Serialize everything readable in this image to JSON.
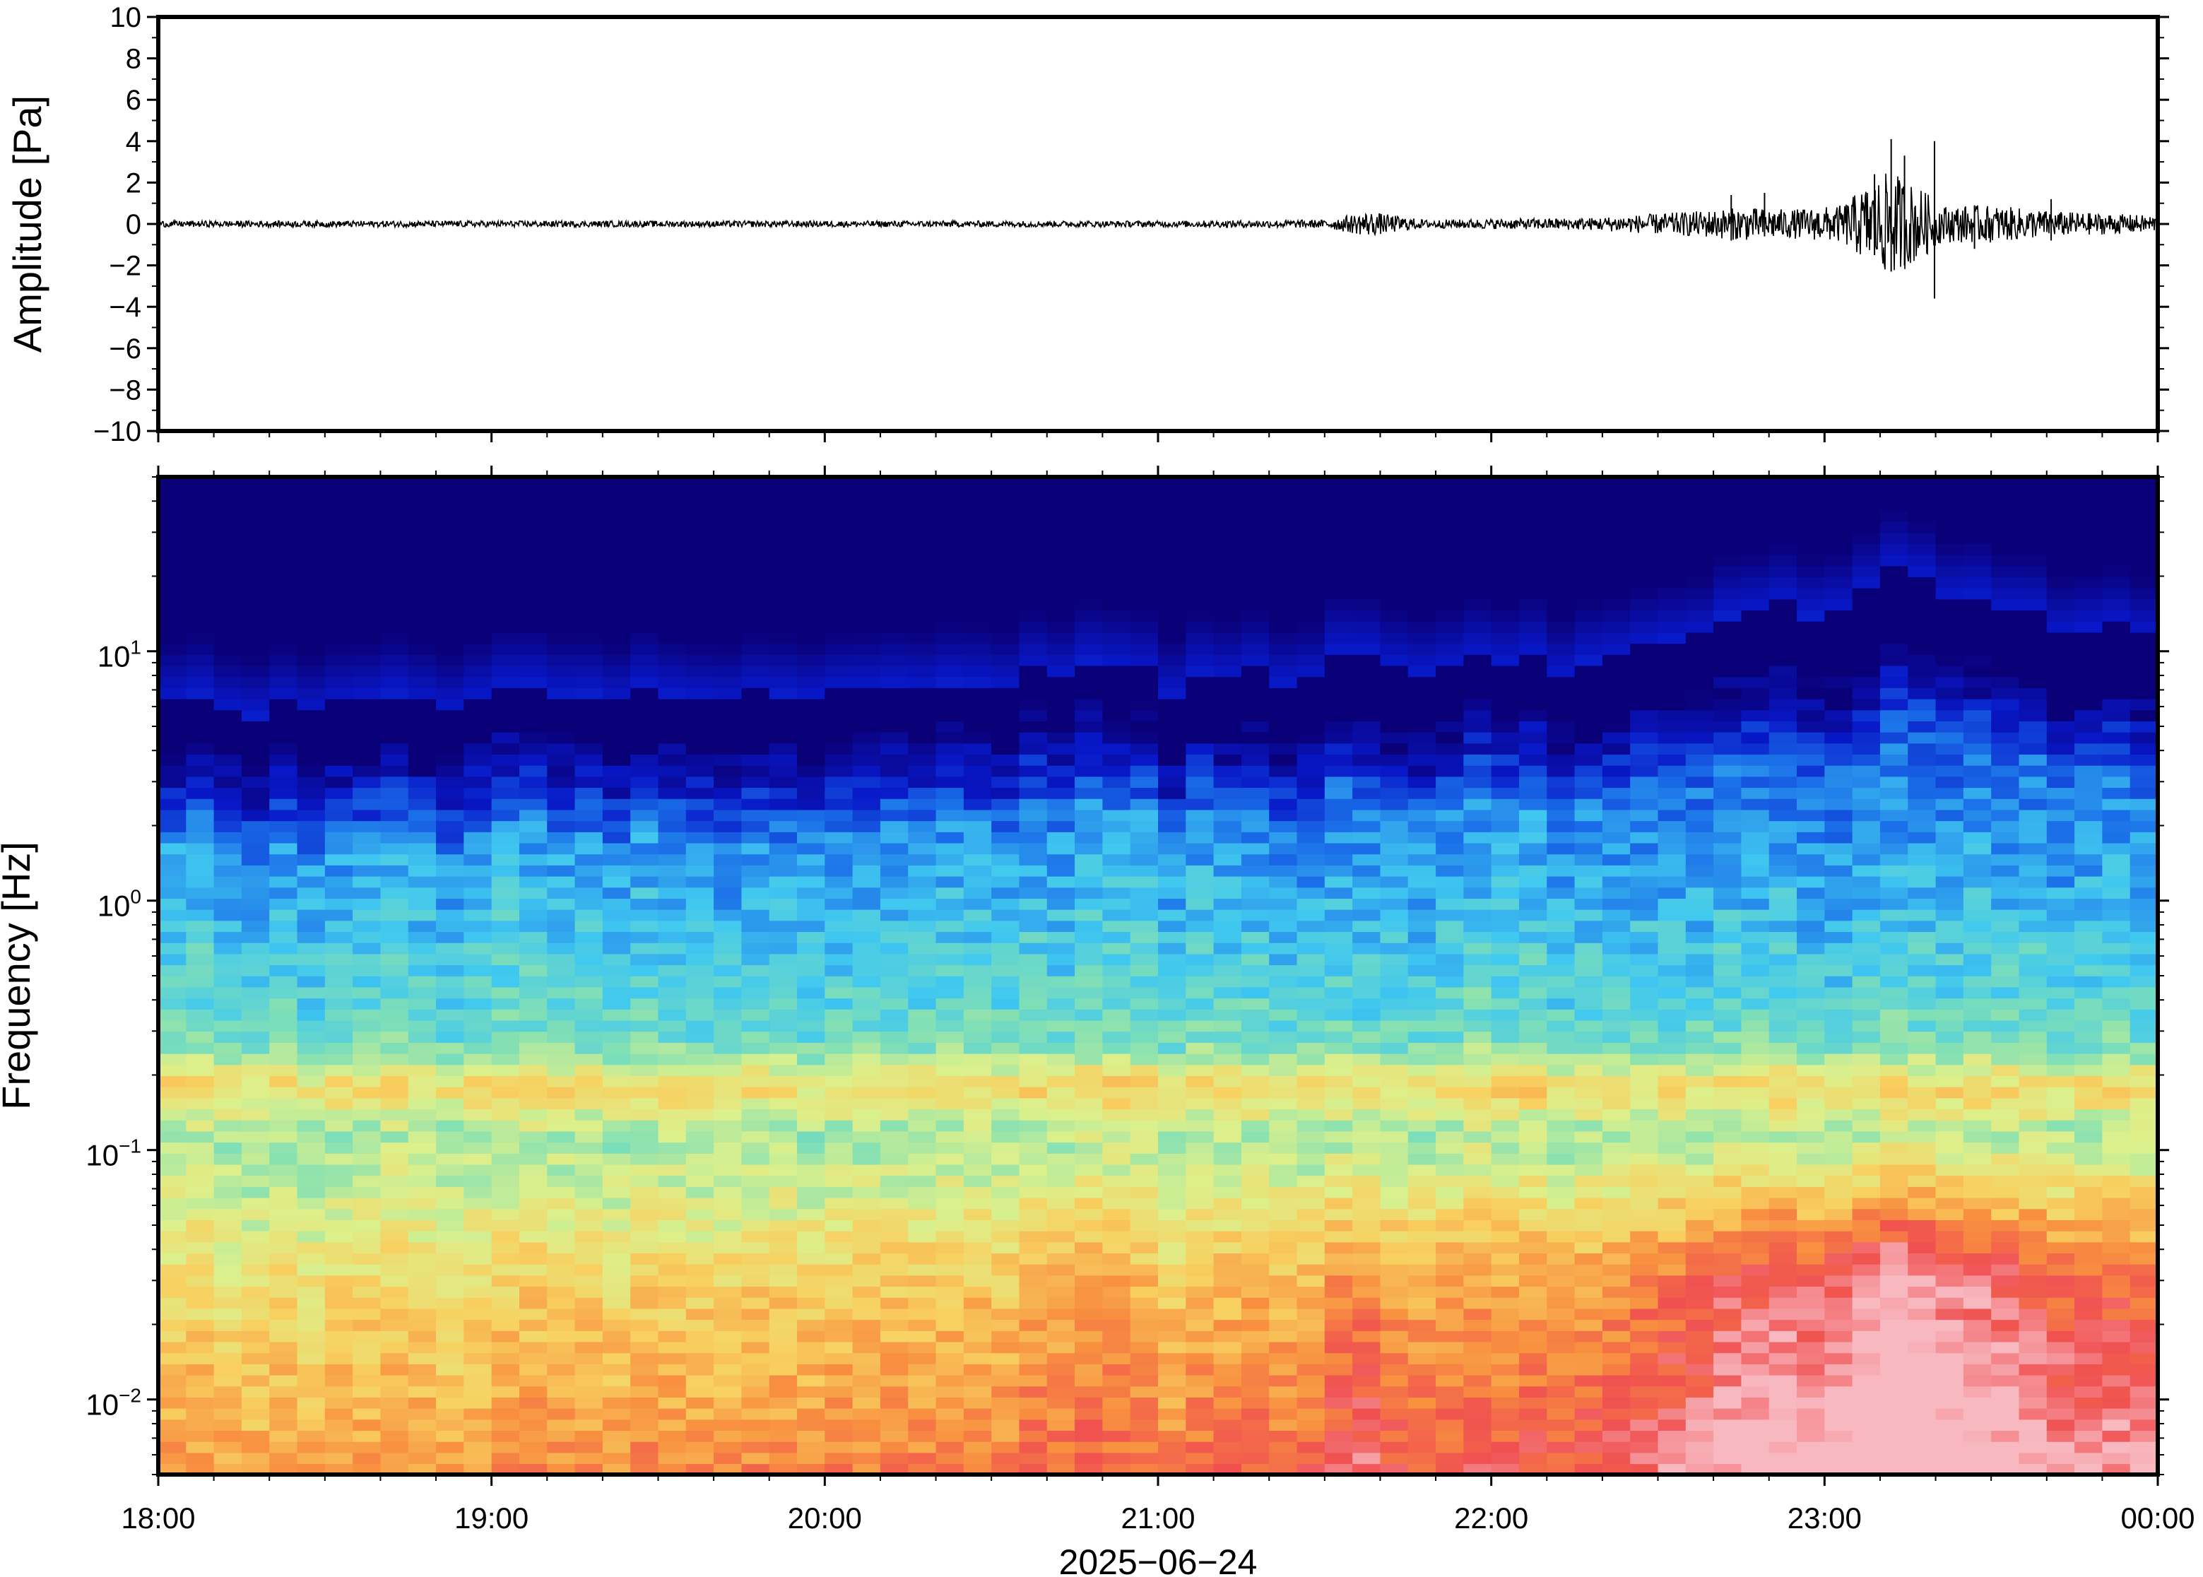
{
  "chart_data": [
    {
      "type": "line",
      "panel": "waveform",
      "ylabel": "Amplitude [Pa]",
      "ylim": [
        -10,
        10
      ],
      "y_ticks": [
        {
          "value": 10,
          "label": "10"
        },
        {
          "value": 8,
          "label": "8"
        },
        {
          "value": 6,
          "label": "6"
        },
        {
          "value": 4,
          "label": "4"
        },
        {
          "value": 2,
          "label": "2"
        },
        {
          "value": 0,
          "label": "0"
        },
        {
          "value": -2,
          "label": "−2"
        },
        {
          "value": -4,
          "label": "−4"
        },
        {
          "value": -6,
          "label": "−6"
        },
        {
          "value": -8,
          "label": "−8"
        },
        {
          "value": -10,
          "label": "−10"
        }
      ],
      "xlim_hours": [
        18,
        24
      ],
      "envelope": {
        "x_hours": [
          18.0,
          19.0,
          20.0,
          21.0,
          21.5,
          21.63,
          21.8,
          22.3,
          22.6,
          22.75,
          22.9,
          23.05,
          23.12,
          23.2,
          23.3,
          23.35,
          23.5,
          23.7,
          24.0
        ],
        "amplitude_pa": [
          0.15,
          0.15,
          0.15,
          0.15,
          0.2,
          0.6,
          0.2,
          0.3,
          0.6,
          0.8,
          0.7,
          0.9,
          1.8,
          2.6,
          1.6,
          0.9,
          0.9,
          0.6,
          0.4
        ]
      },
      "spikes": [
        {
          "x_hour": 22.72,
          "min": -0.8,
          "max": 1.4
        },
        {
          "x_hour": 22.82,
          "min": -0.6,
          "max": 1.5
        },
        {
          "x_hour": 23.15,
          "min": -1.5,
          "max": 2.4
        },
        {
          "x_hour": 23.2,
          "min": -2.3,
          "max": 4.1
        },
        {
          "x_hour": 23.24,
          "min": -2.0,
          "max": 3.3
        },
        {
          "x_hour": 23.33,
          "min": -3.6,
          "max": 4.0
        },
        {
          "x_hour": 23.45,
          "min": -1.2,
          "max": 0.9
        },
        {
          "x_hour": 23.68,
          "min": -0.8,
          "max": 1.2
        }
      ]
    },
    {
      "type": "heatmap",
      "panel": "spectrogram",
      "ylabel": "Frequency [Hz]",
      "xlabel": "2025−06−24",
      "y_scale": "log",
      "ylim_hz": [
        0.005,
        50
      ],
      "y_ticks": [
        {
          "value": 10,
          "base": "10",
          "exp": "1"
        },
        {
          "value": 1,
          "base": "10",
          "exp": "0"
        },
        {
          "value": 0.1,
          "base": "10",
          "exp": "−1"
        },
        {
          "value": 0.01,
          "base": "10",
          "exp": "−2"
        }
      ],
      "x_ticks": [
        {
          "value": 18,
          "label": "18:00"
        },
        {
          "value": 19,
          "label": "19:00"
        },
        {
          "value": 20,
          "label": "20:00"
        },
        {
          "value": 21,
          "label": "21:00"
        },
        {
          "value": 22,
          "label": "22:00"
        },
        {
          "value": 23,
          "label": "23:00"
        },
        {
          "value": 24,
          "label": "00:00"
        }
      ],
      "colormap": [
        "#0a0078",
        "#0818c8",
        "#1a6ee8",
        "#40c8f0",
        "#82e0b4",
        "#dcf08c",
        "#f8d060",
        "#f89040",
        "#f05050",
        "#f8b8c0"
      ],
      "energy_profile": {
        "x_hours": [
          18.0,
          18.5,
          19.0,
          19.5,
          20.0,
          20.5,
          20.75,
          21.0,
          21.5,
          21.6,
          21.7,
          22.0,
          22.3,
          22.6,
          22.8,
          23.0,
          23.15,
          23.25,
          23.4,
          23.6,
          23.8,
          24.0
        ],
        "activity": [
          0.05,
          0.1,
          0.1,
          0.15,
          0.2,
          0.2,
          0.3,
          0.2,
          0.35,
          0.55,
          0.4,
          0.3,
          0.4,
          0.6,
          0.75,
          0.8,
          0.95,
          1.0,
          0.8,
          0.7,
          0.6,
          0.55
        ]
      }
    }
  ]
}
